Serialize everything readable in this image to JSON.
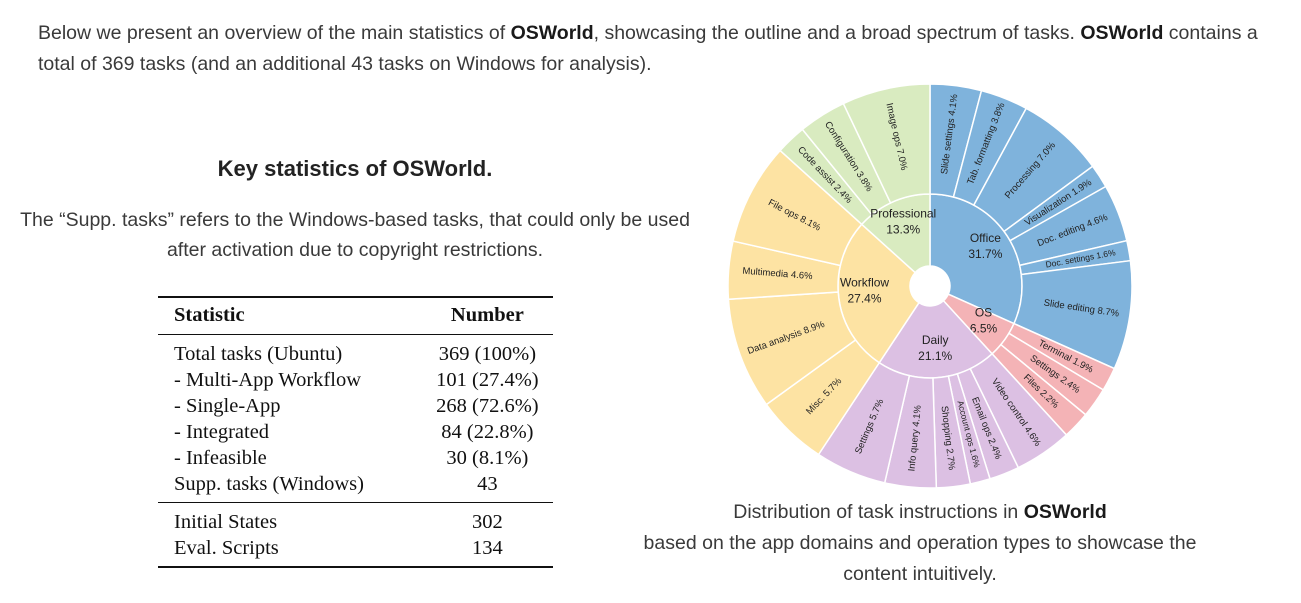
{
  "intro": {
    "part1": "Below we present an overview of the main statistics of ",
    "brand": "OSWorld",
    "part2": ", showcasing the outline and a broad spectrum of tasks. ",
    "brand2": "OSWorld",
    "part3": " contains a total of 369 tasks (and an additional 43 tasks on Windows for analysis)."
  },
  "stats": {
    "title": "Key statistics of OSWorld.",
    "caption": "The “Supp. tasks” refers to the Windows-based tasks, that could only be used after activation due to copyright restrictions.",
    "headers": [
      "Statistic",
      "Number"
    ],
    "rows_main": [
      [
        "Total tasks (Ubuntu)",
        "369 (100%)"
      ],
      [
        "- Multi-App Workflow",
        "101 (27.4%)"
      ],
      [
        "- Single-App",
        "268 (72.6%)"
      ],
      [
        "- Integrated",
        "84 (22.8%)"
      ],
      [
        "- Infeasible",
        "30 (8.1%)"
      ],
      [
        "Supp. tasks (Windows)",
        "43"
      ]
    ],
    "rows_extra": [
      [
        "Initial States",
        "302"
      ],
      [
        "Eval. Scripts",
        "134"
      ]
    ]
  },
  "chart_caption": {
    "line1_prefix": "Distribution of task instructions in ",
    "brand": "OSWorld",
    "line2": "based on the app domains and operation types to showcase the content intuitively."
  },
  "chart_data": {
    "type": "sunburst",
    "title": "Distribution of task instructions in OSWorld",
    "start_angle_deg": 0,
    "direction": "clockwise",
    "groups": [
      {
        "name": "Office",
        "value": 31.7,
        "label_pct": "31.7%",
        "color": "#7fb3dc",
        "children": [
          {
            "label": "Slide settings 4.1%",
            "value": 4.1
          },
          {
            "label": "Tab. formatting 3.8%",
            "value": 3.8
          },
          {
            "label": "Processing 7.0%",
            "value": 7.0
          },
          {
            "label": "Visualization 1.9%",
            "value": 1.9
          },
          {
            "label": "Doc. editing 4.6%",
            "value": 4.6
          },
          {
            "label": "Doc. settings 1.6%",
            "value": 1.6
          },
          {
            "label": "Slide editing 8.7%",
            "value": 8.7
          }
        ]
      },
      {
        "name": "OS",
        "value": 6.5,
        "label_pct": "6.5%",
        "color": "#f4b3b6",
        "children": [
          {
            "label": "Terminal 1.9%",
            "value": 1.9
          },
          {
            "label": "Settings 2.4%",
            "value": 2.4
          },
          {
            "label": "Files 2.2%",
            "value": 2.2
          }
        ]
      },
      {
        "name": "Daily",
        "value": 21.1,
        "label_pct": "21.1%",
        "color": "#dcc0e3",
        "children": [
          {
            "label": "Video control 4.6%",
            "value": 4.6
          },
          {
            "label": "Email ops 2.4%",
            "value": 2.4
          },
          {
            "label": "Account ops 1.6%",
            "value": 1.6
          },
          {
            "label": "Shopping 2.7%",
            "value": 2.7
          },
          {
            "label": "Info query 4.1%",
            "value": 4.1
          },
          {
            "label": "Settings 5.7%",
            "value": 5.7
          }
        ]
      },
      {
        "name": "Workflow",
        "value": 27.4,
        "label_pct": "27.4%",
        "color": "#fde3a3",
        "children": [
          {
            "label": "Misc. 5.7%",
            "value": 5.7
          },
          {
            "label": "Data analysis 8.9%",
            "value": 8.9
          },
          {
            "label": "Multimedia 4.6%",
            "value": 4.6
          },
          {
            "label": "File ops 8.1%",
            "value": 8.1
          }
        ]
      },
      {
        "name": "Professional",
        "value": 13.3,
        "label_pct": "13.3%",
        "color": "#d9ebc0",
        "children": [
          {
            "label": "Code assist 2.4%",
            "value": 2.4
          },
          {
            "label": "Configuration 3.8%",
            "value": 3.8
          },
          {
            "label": "Image ops 7.0%",
            "value": 7.0
          }
        ]
      }
    ]
  }
}
